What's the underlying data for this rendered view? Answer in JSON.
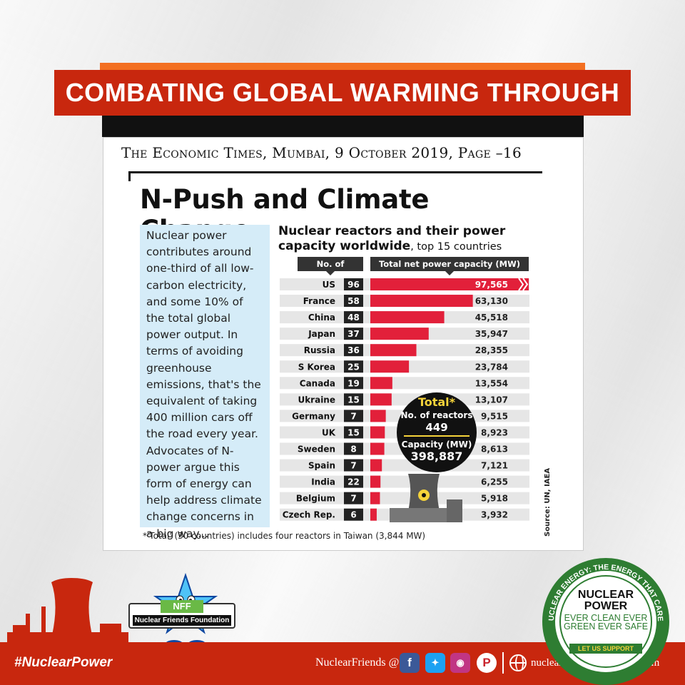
{
  "banner": {
    "title": "COMBATING GLOBAL WARMING THROUGH NUCLEAR POWER"
  },
  "article": {
    "source_line": "The Economic Times, Mumbai, 9 October 2019, Page –16",
    "headline": "N-Push and Climate Change",
    "body": "Nuclear power contributes around one-third of all low-carbon electricity, and some 10% of the total global power output. In terms of avoiding greenhouse emissions, that's the equivalent of taking 400 million cars off the road every year. Advocates of N-power argue this form of energy can help address climate change concerns in a big way...",
    "footnote": "*'Total' (30 countries) includes four reactors in Taiwan (3,844 MW)",
    "source_note": "Source: UN, IAEA"
  },
  "chart_data": {
    "type": "table",
    "title": "Nuclear reactors and their power capacity worldwide",
    "subtitle": ", top 15 countries",
    "columns": [
      "No. of reactors",
      "Total net power capacity (MW)"
    ],
    "categories": [
      "US",
      "France",
      "China",
      "Japan",
      "Russia",
      "S Korea",
      "Canada",
      "Ukraine",
      "Germany",
      "UK",
      "Sweden",
      "Spain",
      "India",
      "Belgium",
      "Czech Rep."
    ],
    "series": [
      {
        "name": "No. of reactors",
        "values": [
          96,
          58,
          48,
          37,
          36,
          25,
          19,
          15,
          7,
          15,
          8,
          7,
          22,
          7,
          6
        ]
      },
      {
        "name": "Total net power capacity (MW)",
        "values": [
          97565,
          63130,
          45518,
          35947,
          28355,
          23784,
          13554,
          13107,
          9515,
          8923,
          8613,
          7121,
          6255,
          5918,
          3932
        ]
      }
    ],
    "value_labels": [
      "97,565",
      "63,130",
      "45,518",
      "35,947",
      "28,355",
      "23,784",
      "13,554",
      "13,107",
      "9,515",
      "8,923",
      "8,613",
      "7,121",
      "6,255",
      "5,918",
      "3,932"
    ],
    "bar_axis_max": 97565,
    "bar_color": "#e2203a",
    "total": {
      "heading": "Total*",
      "reactors_label": "No. of reactors",
      "reactors_value": "449",
      "capacity_label": "Capacity (MW)",
      "capacity_value": "398,887"
    }
  },
  "branding": {
    "org_short": "NFF",
    "org_full": "Nuclear Friends Foundation",
    "seal": {
      "ring_text": "NUCLEAR ENERGY: THE ENERGY THAT CARES",
      "line1": "NUCLEAR POWER",
      "line2": "EVER CLEAN EVER GREEN EVER SAFE",
      "line3": "LET US SUPPORT"
    }
  },
  "footer": {
    "hashtag": "#NuclearPower",
    "social_label": "NuclearFriends @",
    "website": "nuclearfriendsfoundation.com",
    "icons": [
      "facebook-icon",
      "twitter-icon",
      "instagram-icon",
      "pinterest-icon",
      "globe-icon"
    ]
  },
  "colors": {
    "banner_red": "#c8270e",
    "accent_orange": "#f36f21",
    "bar_red": "#e2203a",
    "panel_blue": "#d5ecf8",
    "seal_green": "#2e7d32"
  }
}
